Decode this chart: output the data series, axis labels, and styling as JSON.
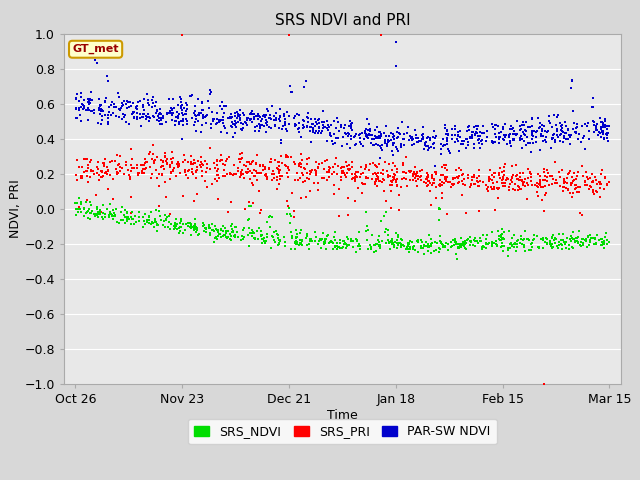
{
  "title": "SRS NDVI and PRI",
  "xlabel": "Time",
  "ylabel": "NDVI, PRI",
  "ylim": [
    -1.0,
    1.0
  ],
  "yticks": [
    -1.0,
    -0.8,
    -0.6,
    -0.4,
    -0.2,
    0.0,
    0.2,
    0.4,
    0.6,
    0.8,
    1.0
  ],
  "fig_bg_color": "#d8d8d8",
  "plot_bg_color": "#e8e8e8",
  "gt_met_label": "GT_met",
  "legend_entries": [
    "SRS_NDVI",
    "SRS_PRI",
    "PAR-SW NDVI"
  ],
  "legend_colors": [
    "#00dd00",
    "#ff0000",
    "#0000cc"
  ],
  "x_tick_days": [
    0,
    28,
    56,
    84,
    112,
    140
  ],
  "x_tick_labels": [
    "Oct 26",
    "Nov 23",
    "Dec 21",
    "Jan 18",
    "Feb 15",
    "Mar 15"
  ],
  "ndvi_color": "#00dd00",
  "pri_color": "#ff0000",
  "par_color": "#0000cc",
  "marker_size": 3,
  "seed": 12345
}
